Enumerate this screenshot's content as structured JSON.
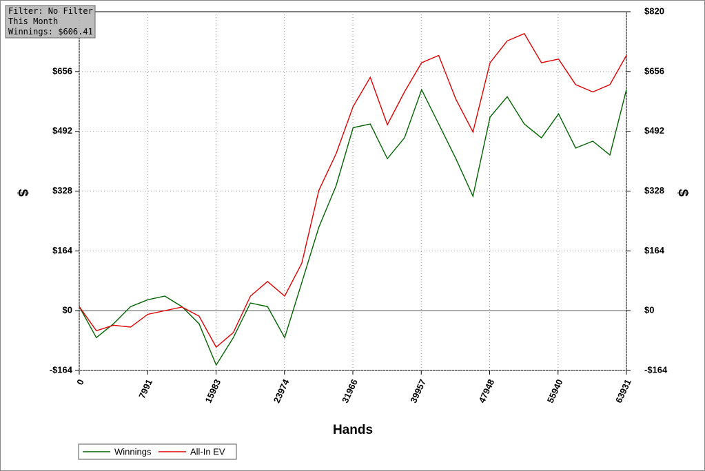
{
  "chart_data": {
    "type": "line",
    "info": [
      "Filter: No Filter",
      "This Month",
      "Winnings: $606.41"
    ],
    "x_label": "Hands",
    "y_label": "$",
    "y2_label": "$",
    "x": [
      0,
      2000,
      4000,
      6000,
      8000,
      10000,
      12000,
      14000,
      16000,
      18000,
      20000,
      22000,
      24000,
      26000,
      28000,
      30000,
      32000,
      34000,
      36000,
      38000,
      40000,
      42000,
      44000,
      46000,
      48000,
      50000,
      52000,
      54000,
      56000,
      58000,
      60000,
      62000,
      63931
    ],
    "series": [
      {
        "name": "Winnings",
        "color": "#006400",
        "values": [
          11,
          -74,
          -36,
          11,
          30,
          40,
          11,
          -36,
          -149,
          -74,
          21,
          11,
          -74,
          77,
          229,
          342,
          502,
          512,
          417,
          474,
          606,
          512,
          417,
          314,
          531,
          587,
          512,
          474,
          540,
          446,
          465,
          427,
          606.41
        ]
      },
      {
        "name": "All-In EV",
        "color": "#e00000",
        "values": [
          11,
          -55,
          -40,
          -45,
          -10,
          0,
          10,
          -15,
          -100,
          -60,
          40,
          80,
          40,
          130,
          330,
          430,
          560,
          640,
          510,
          600,
          680,
          700,
          580,
          490,
          680,
          740,
          760,
          680,
          690,
          620,
          600,
          620,
          700
        ]
      }
    ],
    "xlim": [
      0,
      63931
    ],
    "xticks": [
      0,
      7991,
      15983,
      23974,
      31966,
      39957,
      47948,
      55940,
      63931
    ],
    "ylim": [
      -164,
      820
    ],
    "yticks": [
      {
        "value": -164,
        "label": "-$164"
      },
      {
        "value": 0,
        "label": "$0"
      },
      {
        "value": 164,
        "label": "$164"
      },
      {
        "value": 328,
        "label": "$328"
      },
      {
        "value": 492,
        "label": "$492"
      },
      {
        "value": 656,
        "label": "$656"
      }
    ],
    "y2lim": [
      -164,
      820
    ],
    "y2ticks": [
      {
        "value": -164,
        "label": "-$164"
      },
      {
        "value": 0,
        "label": "$0"
      },
      {
        "value": 164,
        "label": "$164"
      },
      {
        "value": 328,
        "label": "$328"
      },
      {
        "value": 492,
        "label": "$492"
      },
      {
        "value": 656,
        "label": "$656"
      },
      {
        "value": 820,
        "label": "$820"
      }
    ],
    "grid": true
  }
}
